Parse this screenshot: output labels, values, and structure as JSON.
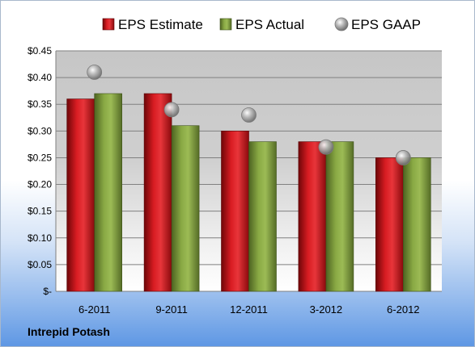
{
  "footer": {
    "company": "Intrepid Potash"
  },
  "chart_data": {
    "type": "bar",
    "categories": [
      "6-2011",
      "9-2011",
      "12-2011",
      "3-2012",
      "6-2012"
    ],
    "series": [
      {
        "name": "EPS Estimate",
        "type": "bar",
        "color": "#c8151b",
        "values": [
          0.36,
          0.37,
          0.3,
          0.28,
          0.25
        ]
      },
      {
        "name": "EPS Actual",
        "type": "bar",
        "color": "#7f9f3a",
        "values": [
          0.37,
          0.31,
          0.28,
          0.28,
          0.25
        ]
      },
      {
        "name": "EPS GAAP",
        "type": "scatter",
        "color": "#a8a8a8",
        "values": [
          0.41,
          0.34,
          0.33,
          0.27,
          0.25
        ]
      }
    ],
    "yticks": [
      "$-",
      "$0.05",
      "$0.10",
      "$0.15",
      "$0.20",
      "$0.25",
      "$0.30",
      "$0.35",
      "$0.40",
      "$0.45"
    ],
    "ylim": [
      0,
      0.45
    ],
    "grid": true,
    "legend_position": "top"
  }
}
